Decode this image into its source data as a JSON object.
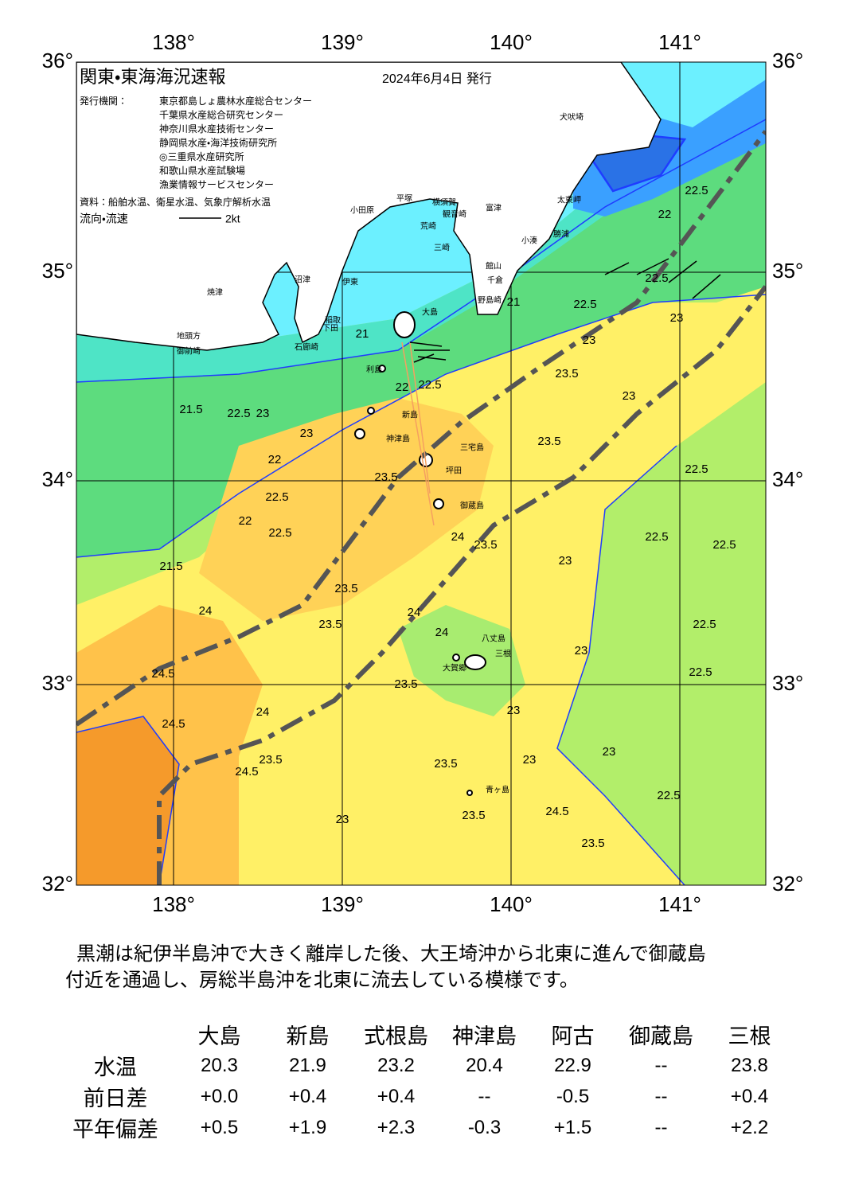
{
  "map": {
    "title": "関東・東海海況速報",
    "date": "2024年6月4日 発行",
    "publisher_label": "発行機関：",
    "publishers": [
      "東京都島しょ農林水産総合センター",
      "千葉県水産総合研究センター",
      "神奈川県水産技術センター",
      "静岡県水産・海洋技術研究所",
      "◎三重県水産研究所",
      "和歌山県水産試験場",
      "漁業情報サービスセンター"
    ],
    "source": "資料：船舶水温、衛星水温、気象庁解析水温",
    "legend_label": "流向・流速",
    "legend_scale": "2kt",
    "lon_labels": [
      "138°",
      "139°",
      "140°",
      "141°"
    ],
    "lat_labels": [
      "36°",
      "35°",
      "34°",
      "33°",
      "32°"
    ],
    "places": [
      "大島",
      "利島",
      "新島",
      "神津島",
      "三宅島",
      "坪田",
      "御蔵島",
      "八丈島",
      "三根",
      "大賀郷",
      "青ヶ島",
      "犬吠埼",
      "太東岬",
      "勝浦",
      "小湊",
      "館山",
      "千倉",
      "野島崎",
      "富津",
      "観音崎",
      "荒崎",
      "三崎",
      "横須賀",
      "平塚",
      "小田原",
      "伊東",
      "沼津",
      "稲取",
      "下田",
      "石廊崎",
      "焼津",
      "地頭方",
      "御前崎"
    ],
    "isotherm_labels": [
      "21",
      "22.5",
      "23",
      "22",
      "22.5",
      "22",
      "22.5",
      "21.5",
      "23.5",
      "23.5",
      "24",
      "24.5",
      "24.5",
      "24",
      "23.5",
      "24.5",
      "23",
      "23.5",
      "23.5",
      "24.5",
      "23.5",
      "23",
      "22.5",
      "22.5",
      "22.5",
      "22.5",
      "22.5",
      "23",
      "23.5",
      "23.5",
      "22.5",
      "23",
      "22.5",
      "22",
      "22.5",
      "23",
      "21",
      "24",
      "24",
      "23.5",
      "23",
      "23",
      "23",
      "22.5",
      "23",
      "23.5",
      "24",
      "22.5",
      "22",
      "23.5",
      "21.5",
      "23"
    ]
  },
  "summary_lines": [
    "黒潮は紀伊半島沖で大きく離岸した後、大王埼沖から北東に進んで御蔵島",
    "付近を通過し、房総半島沖を北東に流去している模様です。"
  ],
  "table": {
    "header": [
      "大島",
      "新島",
      "式根島",
      "神津島",
      "阿古",
      "御蔵島",
      "三根"
    ],
    "rows": [
      {
        "label": "水温",
        "cells": [
          "20.3",
          "21.9",
          "23.2",
          "20.4",
          "22.9",
          "--",
          "23.8"
        ]
      },
      {
        "label": "前日差",
        "cells": [
          "+0.0",
          "+0.4",
          "+0.4",
          "--",
          "-0.5",
          "--",
          "+0.4"
        ]
      },
      {
        "label": "平年偏差",
        "cells": [
          "+0.5",
          "+1.9",
          "+2.3",
          "-0.3",
          "+1.5",
          "--",
          "+2.2"
        ]
      }
    ]
  }
}
